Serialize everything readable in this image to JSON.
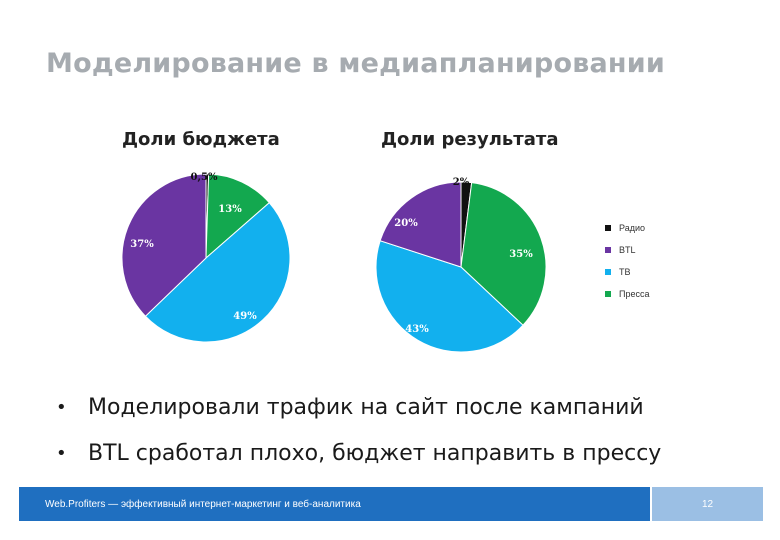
{
  "slide": {
    "title": "Моделирование в медиапланировании",
    "bullets": [
      "Моделировали трафик на сайт после кампаний",
      "BTL сработал плохо, бюджет направить в прессу"
    ],
    "bullet_marker": "•",
    "footer_text": "Web.Profiters — эффективный интернет-маркетинг и веб-аналитика",
    "page_number": "12",
    "colors": {
      "title": "#a6abb0",
      "footer": "#1f6fc0",
      "footer_page": "#9bbfe4"
    }
  },
  "chart_data": [
    {
      "type": "pie",
      "title": "Доли бюджета",
      "slices": [
        {
          "name": "Радио",
          "value": 0.5,
          "label": "0,5%",
          "color": "#111111"
        },
        {
          "name": "Пресса",
          "value": 13,
          "label": "13%",
          "color": "#13a84f"
        },
        {
          "name": "ТВ",
          "value": 49,
          "label": "49%",
          "color": "#12b0ee"
        },
        {
          "name": "BTL",
          "value": 37,
          "label": "37%",
          "color": "#6a35a2"
        }
      ]
    },
    {
      "type": "pie",
      "title": "Доли результата",
      "slices": [
        {
          "name": "Радио",
          "value": 2,
          "label": "2%",
          "color": "#111111"
        },
        {
          "name": "Пресса",
          "value": 35,
          "label": "35%",
          "color": "#13a84f"
        },
        {
          "name": "ТВ",
          "value": 43,
          "label": "43%",
          "color": "#12b0ee"
        },
        {
          "name": "BTL",
          "value": 20,
          "label": "20%",
          "color": "#6a35a2"
        }
      ]
    }
  ],
  "legend": {
    "placement": "right",
    "items": [
      {
        "name": "Радио",
        "color": "#111111"
      },
      {
        "name": "BTL",
        "color": "#6a35a2"
      },
      {
        "name": "ТВ",
        "color": "#12b0ee"
      },
      {
        "name": "Пресса",
        "color": "#13a84f"
      }
    ]
  }
}
